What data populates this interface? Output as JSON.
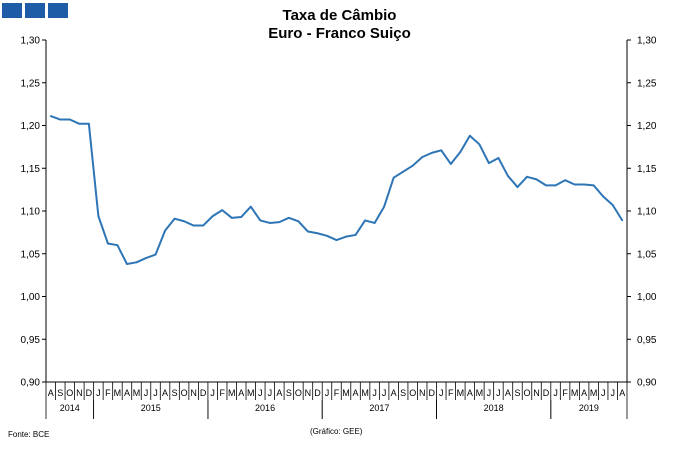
{
  "header": {
    "logo_color": "#1f5ca8",
    "title_line1": "Taxa de Câmbio",
    "title_line2": "Euro - Franco Suiço"
  },
  "footer": {
    "source": "Fonte: BCE",
    "credit": "(Gráfico:  GEE)"
  },
  "chart_data": {
    "type": "line",
    "title": "Taxa de Câmbio\nEuro - Franco Suiço",
    "line_color": "#2e75b6",
    "grid": false,
    "ylim": [
      0.9,
      1.3
    ],
    "yticks": [
      "0,90",
      "0,95",
      "1,00",
      "1,05",
      "1,10",
      "1,15",
      "1,20",
      "1,25",
      "1,30"
    ],
    "month_labels": [
      "A",
      "S",
      "O",
      "N",
      "D",
      "J",
      "F",
      "M",
      "A",
      "M",
      "J",
      "J",
      "A",
      "S",
      "O",
      "N",
      "D",
      "J",
      "F",
      "M",
      "A",
      "M",
      "J",
      "J",
      "A",
      "S",
      "O",
      "N",
      "D",
      "J",
      "F",
      "M",
      "A",
      "M",
      "J",
      "J",
      "A",
      "S",
      "O",
      "N",
      "D",
      "J",
      "F",
      "M",
      "A",
      "M",
      "J",
      "J",
      "A",
      "S",
      "O",
      "N",
      "D",
      "J",
      "F",
      "M",
      "A",
      "M",
      "J",
      "J",
      "A"
    ],
    "years": [
      {
        "label": "2014",
        "start": 0,
        "count": 5
      },
      {
        "label": "2015",
        "start": 5,
        "count": 12
      },
      {
        "label": "2016",
        "start": 17,
        "count": 12
      },
      {
        "label": "2017",
        "start": 29,
        "count": 12
      },
      {
        "label": "2018",
        "start": 41,
        "count": 12
      },
      {
        "label": "2019",
        "start": 53,
        "count": 8
      }
    ],
    "series": [
      {
        "values": [
          1.211,
          1.207,
          1.207,
          1.202,
          1.202,
          1.094,
          1.062,
          1.06,
          1.038,
          1.04,
          1.045,
          1.049,
          1.077,
          1.091,
          1.088,
          1.083,
          1.083,
          1.094,
          1.101,
          1.092,
          1.093,
          1.105,
          1.089,
          1.086,
          1.087,
          1.092,
          1.088,
          1.076,
          1.074,
          1.071,
          1.066,
          1.07,
          1.072,
          1.089,
          1.086,
          1.105,
          1.139,
          1.146,
          1.153,
          1.163,
          1.168,
          1.171,
          1.155,
          1.169,
          1.188,
          1.178,
          1.156,
          1.162,
          1.141,
          1.128,
          1.14,
          1.137,
          1.13,
          1.13,
          1.136,
          1.131,
          1.131,
          1.13,
          1.117,
          1.107,
          1.089
        ]
      }
    ]
  }
}
